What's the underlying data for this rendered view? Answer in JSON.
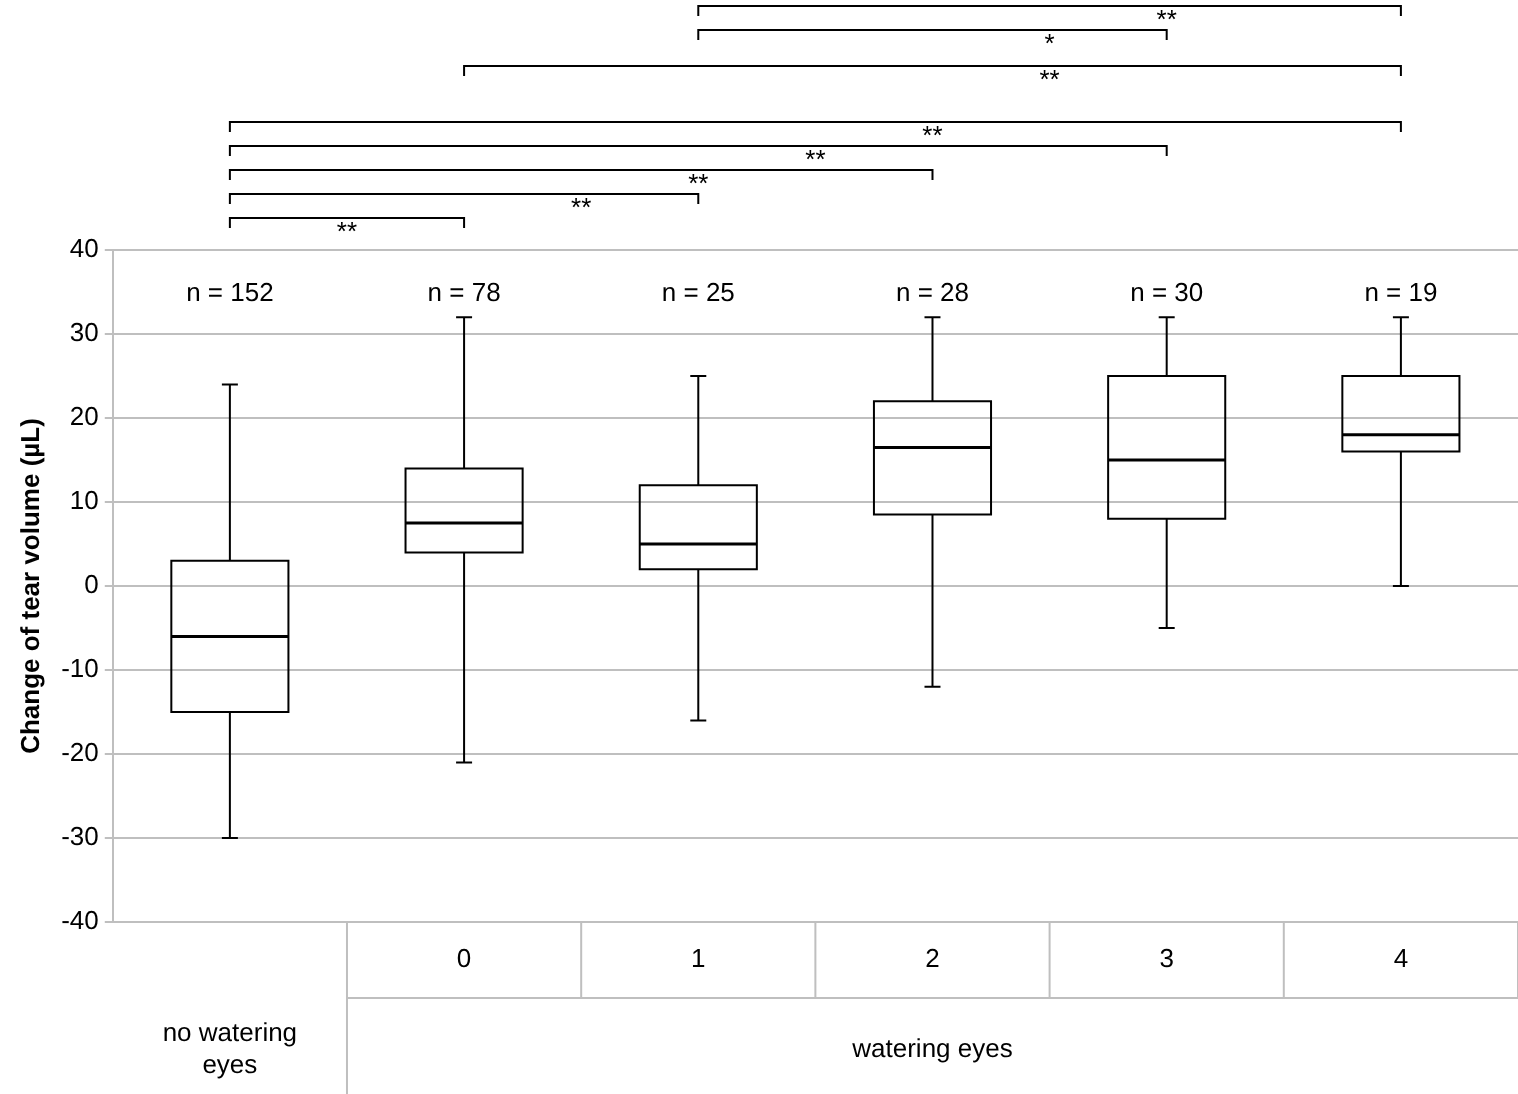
{
  "chart_data": {
    "type": "box",
    "ylabel": "Change of tear volume (µL)",
    "categories": [
      null,
      "0",
      "1",
      "2",
      "3",
      "4"
    ],
    "boxes": [
      {
        "low": -30,
        "q1": -15,
        "median": -6,
        "q3": 3,
        "high": 24
      },
      {
        "low": -21,
        "q1": 4,
        "median": 7.5,
        "q3": 14,
        "high": 32
      },
      {
        "low": -16,
        "q1": 2,
        "median": 5,
        "q3": 12,
        "high": 25
      },
      {
        "low": -12,
        "q1": 8.5,
        "median": 16.5,
        "q3": 22,
        "high": 32
      },
      {
        "low": -5,
        "q1": 8,
        "median": 15,
        "q3": 25,
        "high": 32
      },
      {
        "low": 0,
        "q1": 16,
        "median": 18,
        "q3": 25,
        "high": 32
      }
    ],
    "ylim": [
      -40,
      40
    ],
    "yticks": [
      -40,
      -30,
      -20,
      -10,
      0,
      10,
      20,
      30,
      40
    ],
    "grid": "y",
    "legend": false,
    "annotations": [
      "n = 152",
      "n = 78",
      "n = 25",
      "n = 28",
      "n = 30",
      "n = 19",
      "no watering eyes",
      "watering eyes",
      "**",
      "*",
      "**",
      "**",
      "**",
      "**",
      "**",
      "**"
    ]
  }
}
